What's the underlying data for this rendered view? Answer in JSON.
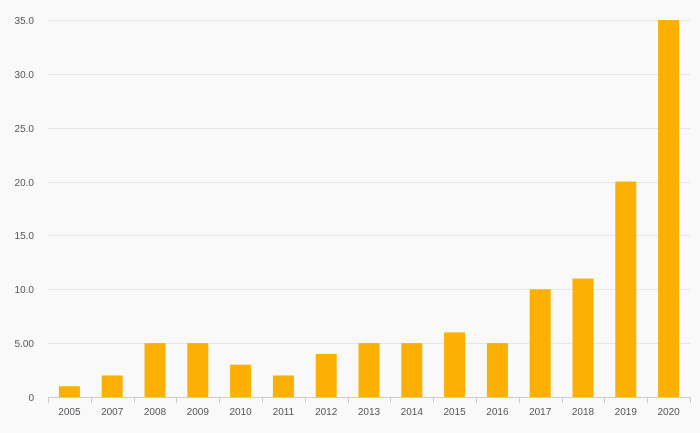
{
  "chart_data": {
    "type": "bar",
    "title": "",
    "xlabel": "",
    "ylabel": "",
    "categories": [
      "2005",
      "2007",
      "2008",
      "2009",
      "2010",
      "2011",
      "2012",
      "2013",
      "2014",
      "2015",
      "2016",
      "2017",
      "2018",
      "2019",
      "2020"
    ],
    "values": [
      1,
      2,
      5,
      5,
      3,
      2,
      4,
      5,
      5,
      6,
      5,
      10,
      11,
      20,
      35
    ],
    "ylim": [
      0,
      35
    ],
    "yticks": [
      0,
      5,
      10,
      15,
      20,
      25,
      30,
      35
    ],
    "ytick_labels": [
      "0",
      "5.00",
      "10.0",
      "15.0",
      "20.0",
      "25.0",
      "30.0",
      "35.0"
    ],
    "grid": true,
    "legend": "none",
    "bar_color": "#fbb003",
    "grid_color": "#e6e6e6",
    "background": "#f9f9f9"
  }
}
